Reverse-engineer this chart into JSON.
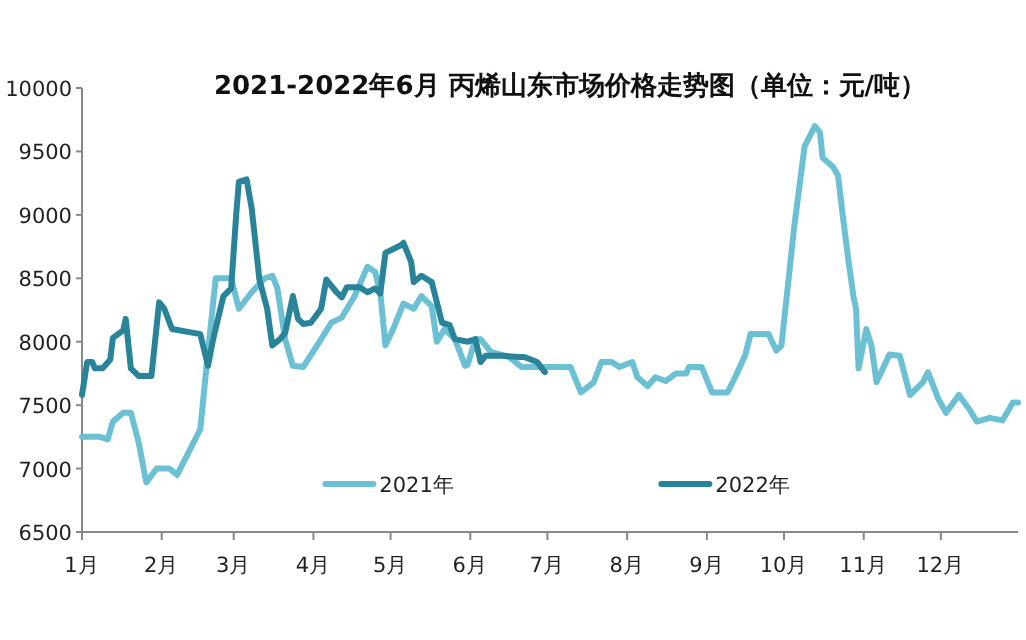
{
  "chart_data": {
    "type": "line",
    "title": "2021-2022年6月 丙烯山东市场价格走势图（单位：元/吨）",
    "xlim": [
      "--01-01",
      "--12-31"
    ],
    "xticks": [
      {
        "value": "--01-01",
        "label": "1月"
      },
      {
        "value": "--02-01",
        "label": "2月"
      },
      {
        "value": "--03-01",
        "label": "3月"
      },
      {
        "value": "--04-01",
        "label": "4月"
      },
      {
        "value": "--05-01",
        "label": "5月"
      },
      {
        "value": "--06-01",
        "label": "6月"
      },
      {
        "value": "--07-01",
        "label": "7月"
      },
      {
        "value": "--08-01",
        "label": "8月"
      },
      {
        "value": "--09-01",
        "label": "9月"
      },
      {
        "value": "--10-01",
        "label": "10月"
      },
      {
        "value": "--11-01",
        "label": "11月"
      },
      {
        "value": "--12-01",
        "label": "12月"
      }
    ],
    "ylim": [
      6500,
      10000
    ],
    "yticks": [
      6500,
      7000,
      7500,
      8000,
      8500,
      9000,
      9500,
      10000
    ],
    "grid": false,
    "legend": "bottom",
    "marker": "none",
    "line_style": "solid",
    "series": [
      {
        "name": "2021年",
        "color": "#6cc0d4",
        "x": [
          "--01-01",
          "--01-08",
          "--01-11",
          "--01-13",
          "--01-17",
          "--01-20",
          "--01-23",
          "--01-26",
          "--01-30",
          "--02-04",
          "--02-07",
          "--02-16",
          "--02-19",
          "--02-22",
          "--02-28",
          "--03-03",
          "--03-08",
          "--03-13",
          "--03-16",
          "--03-18",
          "--03-21",
          "--03-24",
          "--03-28",
          "--04-04",
          "--04-08",
          "--04-12",
          "--04-17",
          "--04-22",
          "--04-25",
          "--04-27",
          "--04-29",
          "--05-02",
          "--05-06",
          "--05-10",
          "--05-13",
          "--05-17",
          "--05-19",
          "--05-22",
          "--05-26",
          "--05-30",
          "--05-31",
          "--06-03",
          "--06-05",
          "--06-09",
          "--06-16",
          "--06-21",
          "--06-29",
          "--07-10",
          "--07-14",
          "--07-19",
          "--07-22",
          "--07-26",
          "--07-29",
          "--08-03",
          "--08-05",
          "--08-09",
          "--08-12",
          "--08-16",
          "--08-20",
          "--08-24",
          "--08-25",
          "--08-30",
          "--09-03",
          "--09-09",
          "--09-12",
          "--09-16",
          "--09-18",
          "--09-25",
          "--09-28",
          "--09-30",
          "--10-05",
          "--10-09",
          "--10-13",
          "--10-15",
          "--10-16",
          "--10-20",
          "--10-22",
          "--10-24",
          "--10-26",
          "--10-28",
          "--10-29",
          "--10-30",
          "--11-02",
          "--11-04",
          "--11-06",
          "--11-11",
          "--11-15",
          "--11-19",
          "--11-24",
          "--11-26",
          "--11-30",
          "--12-03",
          "--12-08",
          "--12-12",
          "--12-15",
          "--12-20",
          "--12-25",
          "--12-29",
          "--12-31"
        ],
        "values": [
          7250,
          7250,
          7230,
          7370,
          7440,
          7440,
          7210,
          6890,
          7000,
          7000,
          6950,
          7310,
          7920,
          8500,
          8500,
          8260,
          8390,
          8500,
          8520,
          8420,
          8020,
          7810,
          7800,
          8020,
          8150,
          8190,
          8360,
          8590,
          8550,
          8390,
          7970,
          8100,
          8300,
          8260,
          8360,
          8280,
          8000,
          8100,
          8020,
          7810,
          7820,
          8020,
          8020,
          7920,
          7880,
          7800,
          7800,
          7800,
          7600,
          7680,
          7840,
          7840,
          7800,
          7840,
          7720,
          7650,
          7720,
          7690,
          7750,
          7750,
          7800,
          7800,
          7600,
          7600,
          7720,
          7900,
          8060,
          8060,
          7930,
          7970,
          8910,
          9540,
          9700,
          9650,
          9450,
          9380,
          9310,
          8970,
          8650,
          8360,
          8260,
          7790,
          8100,
          7970,
          7680,
          7900,
          7890,
          7580,
          7680,
          7760,
          7550,
          7440,
          7580,
          7470,
          7370,
          7400,
          7380,
          7520,
          7520
        ]
      },
      {
        "name": "2022年",
        "color": "#2a8499",
        "x": [
          "--01-01",
          "--01-03",
          "--01-05",
          "--01-06",
          "--01-09",
          "--01-12",
          "--01-13",
          "--01-17",
          "--01-18",
          "--01-20",
          "--01-23",
          "--01-28",
          "--01-31",
          "--02-02",
          "--02-05",
          "--02-16",
          "--02-19",
          "--02-21",
          "--02-25",
          "--02-28",
          "--03-02",
          "--03-03",
          "--03-06",
          "--03-08",
          "--03-11",
          "--03-14",
          "--03-16",
          "--03-19",
          "--03-21",
          "--03-24",
          "--03-26",
          "--03-28",
          "--03-31",
          "--04-04",
          "--04-06",
          "--04-10",
          "--04-12",
          "--04-14",
          "--04-19",
          "--04-22",
          "--04-25",
          "--04-27",
          "--04-29",
          "--05-05",
          "--05-06",
          "--05-09",
          "--05-10",
          "--05-13",
          "--05-17",
          "--05-21",
          "--05-24",
          "--05-26",
          "--05-31",
          "--06-03",
          "--06-05",
          "--06-07",
          "--06-13",
          "--06-20",
          "--06-22",
          "--06-27",
          "--06-30"
        ],
        "values": [
          7580,
          7840,
          7840,
          7790,
          7790,
          7860,
          8030,
          8090,
          8180,
          7790,
          7730,
          7730,
          8310,
          8260,
          8100,
          8060,
          7810,
          8020,
          8360,
          8420,
          9010,
          9260,
          9280,
          9050,
          8490,
          8260,
          7970,
          8020,
          8070,
          8360,
          8180,
          8140,
          8150,
          8260,
          8490,
          8390,
          8350,
          8430,
          8430,
          8390,
          8420,
          8380,
          8700,
          8760,
          8780,
          8630,
          8470,
          8520,
          8470,
          8150,
          8130,
          8020,
          8000,
          8020,
          7840,
          7890,
          7890,
          7880,
          7880,
          7840,
          7760
        ]
      }
    ]
  }
}
